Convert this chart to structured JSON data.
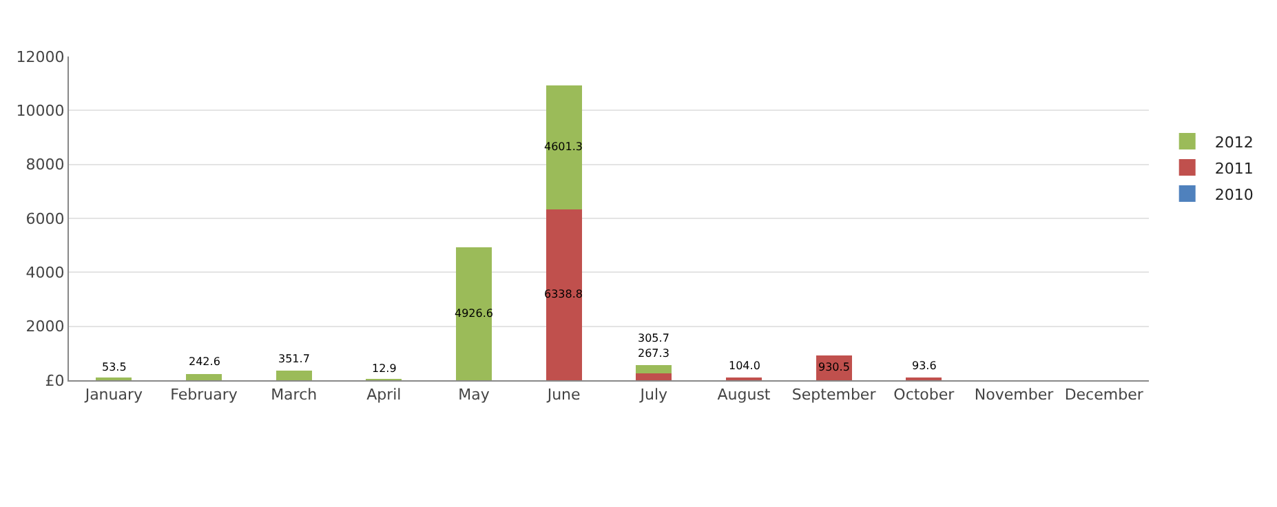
{
  "chart_data": {
    "type": "bar",
    "stacked": true,
    "categories": [
      "January",
      "February",
      "March",
      "April",
      "May",
      "June",
      "July",
      "August",
      "September",
      "October",
      "November",
      "December"
    ],
    "series": [
      {
        "name": "2010",
        "color": "#4f81bd",
        "values": [
          null,
          null,
          null,
          null,
          null,
          null,
          null,
          null,
          null,
          null,
          null,
          null
        ]
      },
      {
        "name": "2011",
        "color": "#c0504d",
        "values": [
          null,
          null,
          null,
          null,
          null,
          6338.8,
          267.3,
          104,
          930.5,
          93.6,
          null,
          null
        ],
        "value_labels": [
          null,
          null,
          null,
          null,
          null,
          "6338.8",
          "267.3",
          "104.0",
          "930.5",
          "93.6",
          null,
          null
        ]
      },
      {
        "name": "2012",
        "color": "#9bbb59",
        "values": [
          53.5,
          242.6,
          351.7,
          12.9,
          4926.6,
          4601.3,
          305.7,
          null,
          null,
          null,
          null,
          null
        ],
        "value_labels": [
          "53.5",
          "242.6",
          "351.7",
          "12.9",
          "4926.6",
          "4601.3",
          "305.7",
          null,
          null,
          null,
          null,
          null
        ]
      }
    ],
    "ylim": [
      0,
      12000
    ],
    "yticks": [
      {
        "value": 0,
        "label": "£0"
      },
      2000,
      4000,
      6000,
      8000,
      10000,
      12000
    ],
    "grid": "y",
    "legend": "right"
  }
}
